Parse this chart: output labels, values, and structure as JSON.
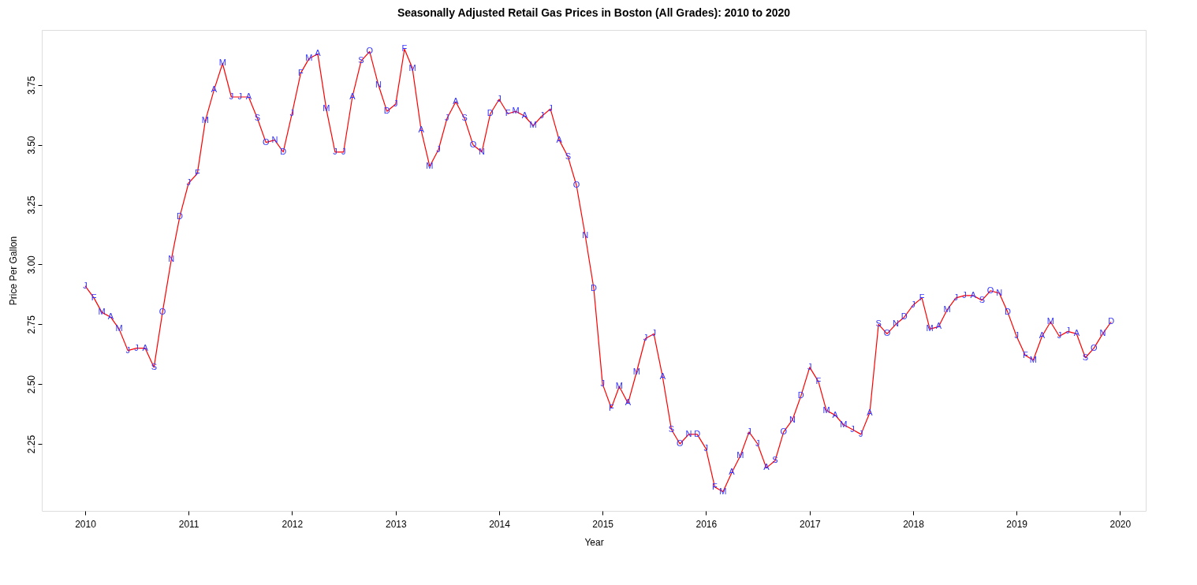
{
  "chart_data": {
    "type": "line",
    "title": "Seasonally Adjusted Retail Gas Prices in Boston (All Grades): 2010 to 2020",
    "xlabel": "Year",
    "ylabel": "Price Per Gallon",
    "x": [
      "2010-01",
      "2010-02",
      "2010-03",
      "2010-04",
      "2010-05",
      "2010-06",
      "2010-07",
      "2010-08",
      "2010-09",
      "2010-10",
      "2010-11",
      "2010-12",
      "2011-01",
      "2011-02",
      "2011-03",
      "2011-04",
      "2011-05",
      "2011-06",
      "2011-07",
      "2011-08",
      "2011-09",
      "2011-10",
      "2011-11",
      "2011-12",
      "2012-01",
      "2012-02",
      "2012-03",
      "2012-04",
      "2012-05",
      "2012-06",
      "2012-07",
      "2012-08",
      "2012-09",
      "2012-10",
      "2012-11",
      "2012-12",
      "2013-01",
      "2013-02",
      "2013-03",
      "2013-04",
      "2013-05",
      "2013-06",
      "2013-07",
      "2013-08",
      "2013-09",
      "2013-10",
      "2013-11",
      "2013-12",
      "2014-01",
      "2014-02",
      "2014-03",
      "2014-04",
      "2014-05",
      "2014-06",
      "2014-07",
      "2014-08",
      "2014-09",
      "2014-10",
      "2014-11",
      "2014-12",
      "2015-01",
      "2015-02",
      "2015-03",
      "2015-04",
      "2015-05",
      "2015-06",
      "2015-07",
      "2015-08",
      "2015-09",
      "2015-10",
      "2015-11",
      "2015-12",
      "2016-01",
      "2016-02",
      "2016-03",
      "2016-04",
      "2016-05",
      "2016-06",
      "2016-07",
      "2016-08",
      "2016-09",
      "2016-10",
      "2016-11",
      "2016-12",
      "2017-01",
      "2017-02",
      "2017-03",
      "2017-04",
      "2017-05",
      "2017-06",
      "2017-07",
      "2017-08",
      "2017-09",
      "2017-10",
      "2017-11",
      "2017-12",
      "2018-01",
      "2018-02",
      "2018-03",
      "2018-04",
      "2018-05",
      "2018-06",
      "2018-07",
      "2018-08",
      "2018-09",
      "2018-10",
      "2018-11",
      "2018-12",
      "2019-01",
      "2019-02",
      "2019-03",
      "2019-04",
      "2019-05",
      "2019-06",
      "2019-07",
      "2019-08",
      "2019-09",
      "2019-10",
      "2019-11",
      "2019-12"
    ],
    "series": [
      {
        "color": "#ff0000",
        "values": [
          2.91,
          2.86,
          2.8,
          2.78,
          2.73,
          2.64,
          2.65,
          2.65,
          2.57,
          2.8,
          3.02,
          3.2,
          3.34,
          3.38,
          3.6,
          3.73,
          3.84,
          3.7,
          3.7,
          3.7,
          3.61,
          3.51,
          3.52,
          3.47,
          3.63,
          3.8,
          3.86,
          3.88,
          3.65,
          3.47,
          3.47,
          3.7,
          3.85,
          3.89,
          3.75,
          3.64,
          3.67,
          3.9,
          3.82,
          3.56,
          3.41,
          3.48,
          3.61,
          3.68,
          3.61,
          3.5,
          3.47,
          3.63,
          3.69,
          3.63,
          3.64,
          3.62,
          3.58,
          3.62,
          3.65,
          3.52,
          3.45,
          3.33,
          3.12,
          2.9,
          2.5,
          2.4,
          2.49,
          2.42,
          2.55,
          2.69,
          2.71,
          2.53,
          2.31,
          2.25,
          2.29,
          2.29,
          2.23,
          2.07,
          2.05,
          2.13,
          2.2,
          2.3,
          2.25,
          2.15,
          2.18,
          2.3,
          2.35,
          2.45,
          2.57,
          2.51,
          2.39,
          2.37,
          2.33,
          2.31,
          2.29,
          2.38,
          2.75,
          2.71,
          2.75,
          2.78,
          2.83,
          2.86,
          2.73,
          2.74,
          2.81,
          2.86,
          2.87,
          2.87,
          2.85,
          2.89,
          2.88,
          2.8,
          2.7,
          2.62,
          2.6,
          2.7,
          2.76,
          2.7,
          2.72,
          2.71,
          2.61,
          2.65,
          2.71,
          2.76
        ],
        "value_labels": [
          "J",
          "F",
          "M",
          "A",
          "M",
          "J",
          "J",
          "A",
          "S",
          "O",
          "N",
          "D",
          "J",
          "F",
          "M",
          "A",
          "M",
          "J",
          "J",
          "A",
          "S",
          "O",
          "N",
          "D",
          "J",
          "F",
          "M",
          "A",
          "M",
          "J",
          "J",
          "A",
          "S",
          "O",
          "N",
          "D",
          "J",
          "F",
          "M",
          "A",
          "M",
          "J",
          "J",
          "A",
          "S",
          "O",
          "N",
          "D",
          "J",
          "F",
          "M",
          "A",
          "M",
          "J",
          "J",
          "A",
          "S",
          "O",
          "N",
          "D",
          "J",
          "F",
          "M",
          "A",
          "M",
          "J",
          "J",
          "A",
          "S",
          "O",
          "N",
          "D",
          "J",
          "F",
          "M",
          "A",
          "M",
          "J",
          "J",
          "A",
          "S",
          "O",
          "N",
          "D",
          "J",
          "F",
          "M",
          "A",
          "M",
          "J",
          "J",
          "A",
          "S",
          "O",
          "N",
          "D",
          "J",
          "F",
          "M",
          "A",
          "M",
          "J",
          "J",
          "A",
          "S",
          "O",
          "N",
          "D",
          "J",
          "F",
          "M",
          "A",
          "M",
          "J",
          "J",
          "A",
          "S",
          "O",
          "N",
          "D"
        ]
      }
    ],
    "xlim": [
      "2009-08",
      "2020-04"
    ],
    "xticks": [
      "2010",
      "2011",
      "2012",
      "2013",
      "2014",
      "2015",
      "2016",
      "2017",
      "2018",
      "2019",
      "2020"
    ],
    "ylim": [
      1.97,
      3.98
    ],
    "yticks": [
      2.25,
      {
        "value": 2.5,
        "label": "2.50"
      },
      2.75,
      {
        "value": 3.0,
        "label": "3.00"
      },
      3.25,
      {
        "value": 3.5,
        "label": "3.50"
      },
      3.75
    ],
    "grid": false,
    "legend": false,
    "marker": "none",
    "line_style": "solid"
  }
}
